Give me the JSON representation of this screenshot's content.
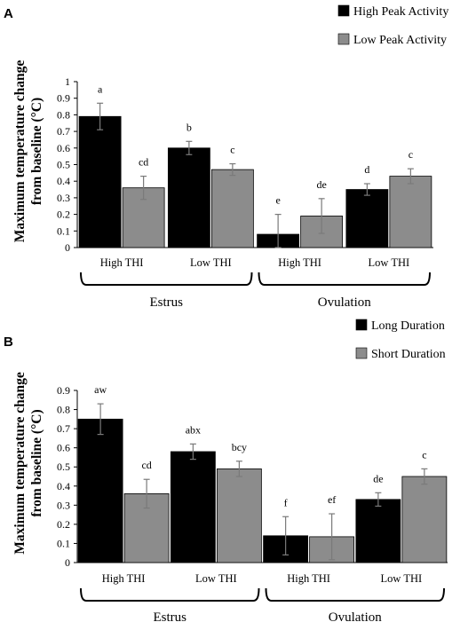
{
  "chart_data": [
    {
      "panel": "A",
      "type": "bar",
      "ylabel": "Maximum temperature change from baseline (°C)",
      "ylim": [
        0,
        1
      ],
      "yticks": [
        "0",
        "0.1",
        "0.2",
        "0.3",
        "0.4",
        "0.5",
        "0.6",
        "0.7",
        "0.8",
        "0.9",
        "1"
      ],
      "categories": [
        "High THI",
        "Low THI",
        "High THI",
        "Low THI"
      ],
      "groups": [
        "Estrus",
        "Ovulation"
      ],
      "legend_position": "top-right",
      "grid": false,
      "series": [
        {
          "name": "High Peak Activity",
          "color": "#000000",
          "values": [
            0.79,
            0.6,
            0.08,
            0.35
          ],
          "errors": [
            0.08,
            0.04,
            0.12,
            0.035
          ],
          "labels": [
            "a",
            "b",
            "e",
            "d"
          ]
        },
        {
          "name": "Low Peak Activity",
          "color": "#8c8c8c",
          "values": [
            0.36,
            0.47,
            0.19,
            0.43
          ],
          "errors": [
            0.07,
            0.035,
            0.105,
            0.045
          ],
          "labels": [
            "cd",
            "c",
            "de",
            "c"
          ]
        }
      ]
    },
    {
      "panel": "B",
      "type": "bar",
      "ylabel": "Maximum temperature change from baseline (°C)",
      "ylim": [
        0,
        0.9
      ],
      "yticks": [
        "0",
        "0.1",
        "0.2",
        "0.3",
        "0.4",
        "0.5",
        "0.6",
        "0.7",
        "0.8",
        "0.9"
      ],
      "categories": [
        "High THI",
        "Low THI",
        "High THI",
        "Low THI"
      ],
      "groups": [
        "Estrus",
        "Ovulation"
      ],
      "legend_position": "top-right",
      "grid": false,
      "series": [
        {
          "name": "Long Duration",
          "color": "#000000",
          "values": [
            0.75,
            0.58,
            0.14,
            0.33
          ],
          "errors": [
            0.08,
            0.04,
            0.1,
            0.035
          ],
          "labels": [
            "aw",
            "abx",
            "f",
            "de"
          ]
        },
        {
          "name": "Short Duration",
          "color": "#8c8c8c",
          "values": [
            0.36,
            0.49,
            0.135,
            0.45
          ],
          "errors": [
            0.075,
            0.04,
            0.12,
            0.04
          ],
          "labels": [
            "cd",
            "bcy",
            "ef",
            "c"
          ]
        }
      ]
    }
  ]
}
